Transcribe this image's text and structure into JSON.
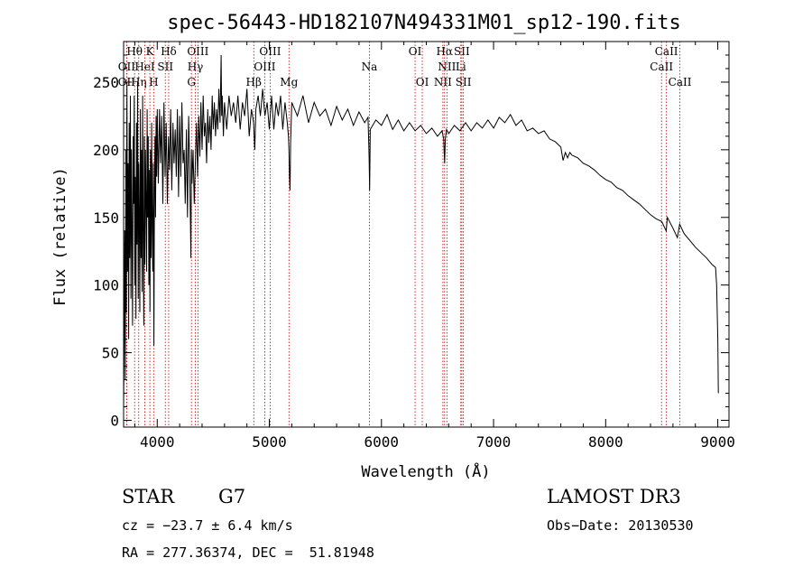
{
  "chart_data": {
    "type": "line",
    "title": "spec-56443-HD182107N494331M01_sp12-190.fits",
    "xlabel": "Wavelength (Å)",
    "ylabel": "Flux (relative)",
    "xlim": [
      3700,
      9100
    ],
    "ylim": [
      -5,
      280
    ],
    "xticks": [
      4000,
      5000,
      6000,
      7000,
      8000,
      9000
    ],
    "yticks": [
      0,
      50,
      100,
      150,
      200,
      250
    ],
    "series": [
      {
        "name": "spectrum",
        "points": [
          [
            3700,
            10
          ],
          [
            3705,
            60
          ],
          [
            3710,
            140
          ],
          [
            3715,
            30
          ],
          [
            3720,
            200
          ],
          [
            3725,
            80
          ],
          [
            3730,
            250
          ],
          [
            3735,
            110
          ],
          [
            3740,
            190
          ],
          [
            3745,
            60
          ],
          [
            3750,
            220
          ],
          [
            3755,
            120
          ],
          [
            3760,
            240
          ],
          [
            3765,
            90
          ],
          [
            3770,
            200
          ],
          [
            3775,
            140
          ],
          [
            3780,
            70
          ],
          [
            3785,
            210
          ],
          [
            3790,
            160
          ],
          [
            3795,
            240
          ],
          [
            3800,
            100
          ],
          [
            3805,
            180
          ],
          [
            3810,
            75
          ],
          [
            3815,
            220
          ],
          [
            3820,
            130
          ],
          [
            3825,
            250
          ],
          [
            3830,
            90
          ],
          [
            3835,
            190
          ],
          [
            3840,
            150
          ],
          [
            3845,
            80
          ],
          [
            3850,
            230
          ],
          [
            3855,
            120
          ],
          [
            3860,
            200
          ],
          [
            3865,
            95
          ],
          [
            3870,
            240
          ],
          [
            3875,
            140
          ],
          [
            3880,
            70
          ],
          [
            3885,
            210
          ],
          [
            3890,
            115
          ],
          [
            3895,
            200
          ],
          [
            3900,
            160
          ],
          [
            3905,
            110
          ],
          [
            3910,
            230
          ],
          [
            3915,
            150
          ],
          [
            3920,
            210
          ],
          [
            3925,
            100
          ],
          [
            3930,
            185
          ],
          [
            3935,
            80
          ],
          [
            3940,
            200
          ],
          [
            3945,
            120
          ],
          [
            3950,
            220
          ],
          [
            3955,
            140
          ],
          [
            3960,
            110
          ],
          [
            3965,
            190
          ],
          [
            3970,
            55
          ],
          [
            3975,
            170
          ],
          [
            3980,
            210
          ],
          [
            3985,
            150
          ],
          [
            3990,
            225
          ],
          [
            3995,
            180
          ],
          [
            4000,
            230
          ],
          [
            4010,
            175
          ],
          [
            4020,
            230
          ],
          [
            4030,
            190
          ],
          [
            4040,
            225
          ],
          [
            4050,
            160
          ],
          [
            4060,
            235
          ],
          [
            4070,
            180
          ],
          [
            4080,
            220
          ],
          [
            4090,
            160
          ],
          [
            4100,
            210
          ],
          [
            4110,
            185
          ],
          [
            4120,
            230
          ],
          [
            4130,
            170
          ],
          [
            4140,
            220
          ],
          [
            4150,
            190
          ],
          [
            4160,
            215
          ],
          [
            4170,
            180
          ],
          [
            4180,
            230
          ],
          [
            4190,
            165
          ],
          [
            4200,
            225
          ],
          [
            4210,
            180
          ],
          [
            4220,
            235
          ],
          [
            4230,
            190
          ],
          [
            4240,
            200
          ],
          [
            4250,
            160
          ],
          [
            4260,
            215
          ],
          [
            4270,
            150
          ],
          [
            4280,
            225
          ],
          [
            4290,
            185
          ],
          [
            4300,
            120
          ],
          [
            4305,
            200
          ],
          [
            4310,
            175
          ],
          [
            4320,
            200
          ],
          [
            4330,
            160
          ],
          [
            4340,
            190
          ],
          [
            4350,
            220
          ],
          [
            4360,
            180
          ],
          [
            4370,
            225
          ],
          [
            4380,
            195
          ],
          [
            4390,
            235
          ],
          [
            4400,
            200
          ],
          [
            4410,
            240
          ],
          [
            4420,
            210
          ],
          [
            4430,
            220
          ],
          [
            4440,
            190
          ],
          [
            4450,
            230
          ],
          [
            4460,
            205
          ],
          [
            4470,
            225
          ],
          [
            4480,
            200
          ],
          [
            4490,
            240
          ],
          [
            4500,
            215
          ],
          [
            4510,
            235
          ],
          [
            4520,
            210
          ],
          [
            4530,
            230
          ],
          [
            4540,
            215
          ],
          [
            4550,
            245
          ],
          [
            4560,
            220
          ],
          [
            4570,
            270
          ],
          [
            4575,
            225
          ],
          [
            4580,
            240
          ],
          [
            4590,
            210
          ],
          [
            4600,
            235
          ],
          [
            4620,
            215
          ],
          [
            4640,
            240
          ],
          [
            4660,
            225
          ],
          [
            4680,
            235
          ],
          [
            4700,
            220
          ],
          [
            4720,
            240
          ],
          [
            4740,
            215
          ],
          [
            4760,
            235
          ],
          [
            4780,
            225
          ],
          [
            4800,
            245
          ],
          [
            4820,
            210
          ],
          [
            4840,
            230
          ],
          [
            4860,
            220
          ],
          [
            4870,
            200
          ],
          [
            4880,
            230
          ],
          [
            4900,
            240
          ],
          [
            4920,
            225
          ],
          [
            4940,
            245
          ],
          [
            4960,
            225
          ],
          [
            4980,
            235
          ],
          [
            5000,
            215
          ],
          [
            5020,
            240
          ],
          [
            5040,
            215
          ],
          [
            5060,
            235
          ],
          [
            5080,
            225
          ],
          [
            5100,
            240
          ],
          [
            5120,
            215
          ],
          [
            5140,
            235
          ],
          [
            5160,
            220
          ],
          [
            5170,
            210
          ],
          [
            5175,
            200
          ],
          [
            5180,
            180
          ],
          [
            5185,
            170
          ],
          [
            5190,
            205
          ],
          [
            5200,
            235
          ],
          [
            5250,
            225
          ],
          [
            5300,
            240
          ],
          [
            5350,
            220
          ],
          [
            5400,
            235
          ],
          [
            5450,
            225
          ],
          [
            5500,
            230
          ],
          [
            5550,
            218
          ],
          [
            5600,
            232
          ],
          [
            5650,
            222
          ],
          [
            5700,
            230
          ],
          [
            5750,
            218
          ],
          [
            5800,
            228
          ],
          [
            5850,
            220
          ],
          [
            5880,
            224
          ],
          [
            5890,
            195
          ],
          [
            5895,
            170
          ],
          [
            5900,
            215
          ],
          [
            5950,
            222
          ],
          [
            6000,
            218
          ],
          [
            6050,
            226
          ],
          [
            6100,
            215
          ],
          [
            6150,
            222
          ],
          [
            6200,
            214
          ],
          [
            6250,
            220
          ],
          [
            6300,
            214
          ],
          [
            6350,
            218
          ],
          [
            6400,
            212
          ],
          [
            6450,
            216
          ],
          [
            6500,
            210
          ],
          [
            6540,
            214
          ],
          [
            6555,
            208
          ],
          [
            6563,
            190
          ],
          [
            6570,
            208
          ],
          [
            6580,
            215
          ],
          [
            6600,
            212
          ],
          [
            6650,
            218
          ],
          [
            6700,
            214
          ],
          [
            6750,
            220
          ],
          [
            6800,
            214
          ],
          [
            6850,
            220
          ],
          [
            6900,
            216
          ],
          [
            6950,
            222
          ],
          [
            7000,
            216
          ],
          [
            7050,
            224
          ],
          [
            7100,
            220
          ],
          [
            7150,
            226
          ],
          [
            7200,
            218
          ],
          [
            7250,
            222
          ],
          [
            7300,
            214
          ],
          [
            7350,
            216
          ],
          [
            7400,
            212
          ],
          [
            7450,
            214
          ],
          [
            7500,
            208
          ],
          [
            7550,
            206
          ],
          [
            7600,
            202
          ],
          [
            7620,
            192
          ],
          [
            7640,
            198
          ],
          [
            7660,
            194
          ],
          [
            7680,
            198
          ],
          [
            7700,
            196
          ],
          [
            7750,
            194
          ],
          [
            7800,
            190
          ],
          [
            7850,
            188
          ],
          [
            7900,
            185
          ],
          [
            7950,
            181
          ],
          [
            8000,
            178
          ],
          [
            8050,
            176
          ],
          [
            8100,
            172
          ],
          [
            8150,
            170
          ],
          [
            8200,
            166
          ],
          [
            8250,
            163
          ],
          [
            8300,
            160
          ],
          [
            8350,
            156
          ],
          [
            8400,
            152
          ],
          [
            8450,
            149
          ],
          [
            8500,
            147
          ],
          [
            8540,
            140
          ],
          [
            8550,
            150
          ],
          [
            8600,
            142
          ],
          [
            8640,
            135
          ],
          [
            8660,
            145
          ],
          [
            8700,
            138
          ],
          [
            8750,
            133
          ],
          [
            8800,
            128
          ],
          [
            8850,
            124
          ],
          [
            8900,
            120
          ],
          [
            8950,
            115
          ],
          [
            8980,
            113
          ],
          [
            8990,
            100
          ],
          [
            9000,
            60
          ],
          [
            9005,
            20
          ]
        ]
      }
    ],
    "line_markers": [
      {
        "label": "OII",
        "wl": 3727,
        "row": 2
      },
      {
        "label": "OII",
        "wl": 3727,
        "row": 1
      },
      {
        "label": "Hθ",
        "wl": 3798,
        "row": 0
      },
      {
        "label": "Hη",
        "wl": 3835,
        "row": 2
      },
      {
        "label": "HeI",
        "wl": 3889,
        "row": 1
      },
      {
        "label": "K",
        "wl": 3934,
        "row": 0
      },
      {
        "label": "H",
        "wl": 3968,
        "row": 2
      },
      {
        "label": "SII",
        "wl": 4072,
        "row": 1
      },
      {
        "label": "Hδ",
        "wl": 4102,
        "row": 0
      },
      {
        "label": "OIII",
        "wl": 4363,
        "row": 0
      },
      {
        "label": "Hγ",
        "wl": 4340,
        "row": 1
      },
      {
        "label": "G",
        "wl": 4305,
        "row": 2
      },
      {
        "label": "Hβ",
        "wl": 4861,
        "row": 2
      },
      {
        "label": "OIII",
        "wl": 4959,
        "row": 1
      },
      {
        "label": "OIII",
        "wl": 5007,
        "row": 0
      },
      {
        "label": "Mg",
        "wl": 5175,
        "row": 2
      },
      {
        "label": "Na",
        "wl": 5893,
        "row": 1
      },
      {
        "label": "OI",
        "wl": 6300,
        "row": 0
      },
      {
        "label": "OI",
        "wl": 6364,
        "row": 2
      },
      {
        "label": "Hα",
        "wl": 6563,
        "row": 0
      },
      {
        "label": "NII",
        "wl": 6584,
        "row": 1
      },
      {
        "label": "NII",
        "wl": 6548,
        "row": 2
      },
      {
        "label": "SII",
        "wl": 6717,
        "row": 0
      },
      {
        "label": "Li",
        "wl": 6708,
        "row": 1
      },
      {
        "label": "SII",
        "wl": 6731,
        "row": 2
      },
      {
        "label": "CaII",
        "wl": 8542,
        "row": 0
      },
      {
        "label": "CaII",
        "wl": 8498,
        "row": 1
      },
      {
        "label": "CaII",
        "wl": 8662,
        "row": 2
      }
    ]
  },
  "info": {
    "class": "STAR",
    "subclass": "G7",
    "survey": "LAMOST DR3",
    "cz": "cz = −23.7 ± 6.4 km/s",
    "obs_date": "Obs−Date: 20130530",
    "radec": "RA = 277.36374, DEC =  51.81948"
  }
}
